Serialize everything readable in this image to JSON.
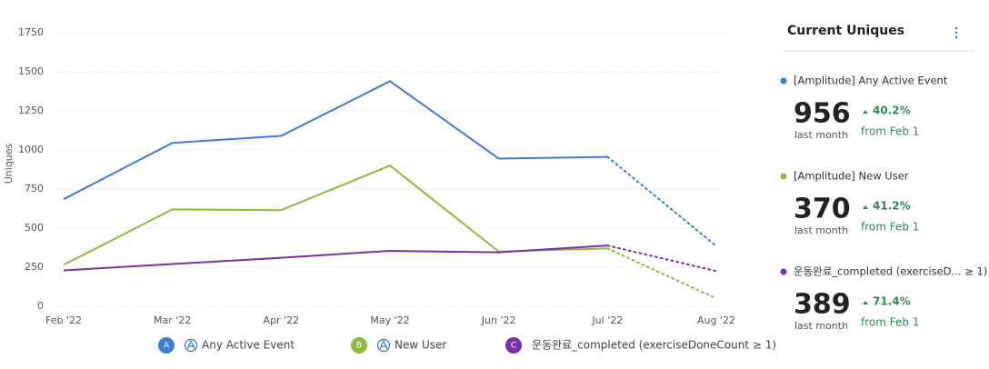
{
  "chart_data": {
    "type": "line",
    "y_label": "Uniques",
    "categories": [
      "Feb '22",
      "Mar '22",
      "Apr '22",
      "May '22",
      "Jun '22",
      "Jul '22",
      "Aug '22"
    ],
    "series": [
      {
        "letter": "A",
        "name": "Any Active Event",
        "color": "#3b7dd8",
        "amplitude_icon": true,
        "values": [
          685,
          1045,
          1090,
          1440,
          945,
          956,
          385
        ]
      },
      {
        "letter": "B",
        "name": "New User",
        "color": "#8fba3c",
        "amplitude_icon": true,
        "values": [
          265,
          620,
          615,
          900,
          350,
          370,
          50
        ]
      },
      {
        "letter": "C",
        "name": "운동완료_completed (exerciseDoneCount ≥ 1)",
        "color": "#7b2fa8",
        "amplitude_icon": false,
        "values": [
          230,
          270,
          310,
          355,
          345,
          389,
          225
        ]
      }
    ],
    "ylim": [
      0,
      1750
    ],
    "yticks": [
      0,
      250,
      500,
      750,
      1000,
      1250,
      1500,
      1750
    ],
    "grid": true,
    "last_period_dotted": true
  },
  "panel": {
    "title": "Current Uniques",
    "items": [
      {
        "name": "[Amplitude] Any Active Event",
        "color": "#3b7dd8",
        "value": 956,
        "caption": "last month",
        "change": "40.2%",
        "since": "from Feb 1"
      },
      {
        "name": "[Amplitude] New User",
        "color": "#8fba3c",
        "value": 370,
        "caption": "last month",
        "change": "41.2%",
        "since": "from Feb 1"
      },
      {
        "name": "운동완료_completed (exerciseD... ≥ 1)",
        "color": "#7b2fa8",
        "value": 389,
        "caption": "last month",
        "change": "71.4%",
        "since": "from Feb 1"
      }
    ]
  }
}
